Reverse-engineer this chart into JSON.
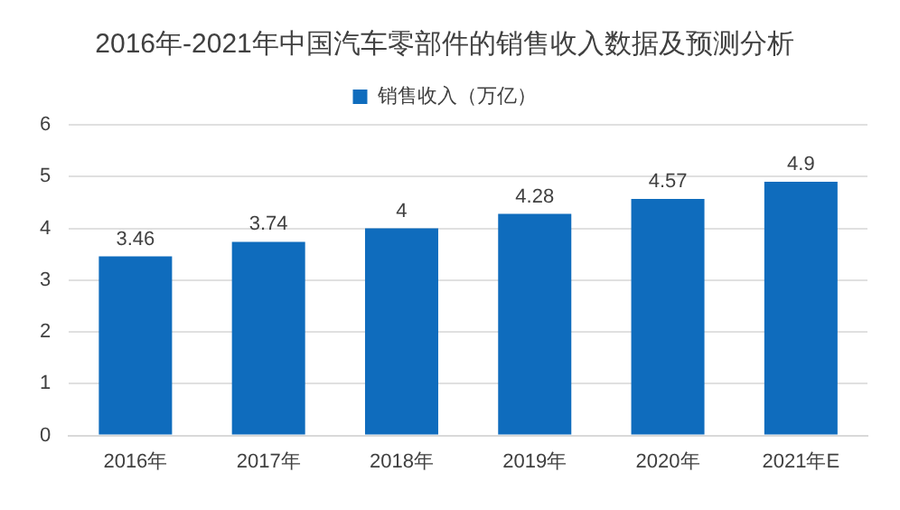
{
  "chart_data": {
    "type": "bar",
    "title": "2016年-2021年中国汽车零部件的销售收入数据及预测分析",
    "categories": [
      "2016年",
      "2017年",
      "2018年",
      "2019年",
      "2020年",
      "2021年E"
    ],
    "series": [
      {
        "name": "销售收入（万亿）",
        "color": "#0f6cbd",
        "values": [
          3.46,
          3.74,
          4,
          4.28,
          4.57,
          4.9
        ]
      }
    ],
    "ylim": [
      0,
      6
    ],
    "yticks": [
      0,
      1,
      2,
      3,
      4,
      5,
      6
    ],
    "grid": "y",
    "legend": "top",
    "data_labels": true
  }
}
